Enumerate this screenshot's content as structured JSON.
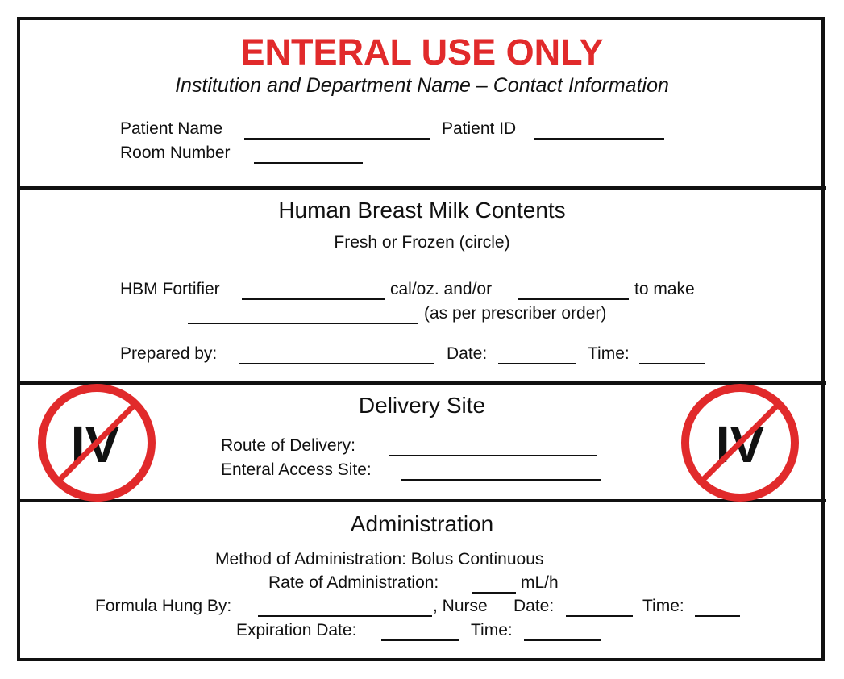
{
  "header": {
    "title": "ENTERAL USE ONLY",
    "subtitle": "Institution and Department Name – Contact Information",
    "patient_name_label": "Patient Name",
    "patient_id_label": "Patient ID",
    "room_number_label": "Room Number"
  },
  "contents": {
    "heading": "Human Breast Milk Contents",
    "fresh_frozen": "Fresh  or  Frozen (circle)",
    "fortifier_label": "HBM Fortifier",
    "cal_text": "cal/oz. and/or",
    "to_make_text": "to make",
    "prescriber_text": "(as per prescriber order)",
    "prepared_by_label": "Prepared by:",
    "date_label": "Date:",
    "time_label": "Time:"
  },
  "delivery": {
    "heading": "Delivery Site",
    "route_label": "Route of Delivery:",
    "access_label": "Enteral Access Site:",
    "icon_text": "IV",
    "icon_color": "#e12a2b"
  },
  "administration": {
    "heading": "Administration",
    "method_text": "Method of Administration:  Bolus   Continuous",
    "rate_label": "Rate of Administration:",
    "rate_unit": "mL/h",
    "hung_by_label": "Formula Hung By:",
    "nurse_text": ", Nurse",
    "date_label": "Date:",
    "time_label": "Time:",
    "expiration_label": "Expiration Date:",
    "exp_time_label": "Time:"
  },
  "colors": {
    "accent": "#e12a2b",
    "text": "#111111"
  }
}
